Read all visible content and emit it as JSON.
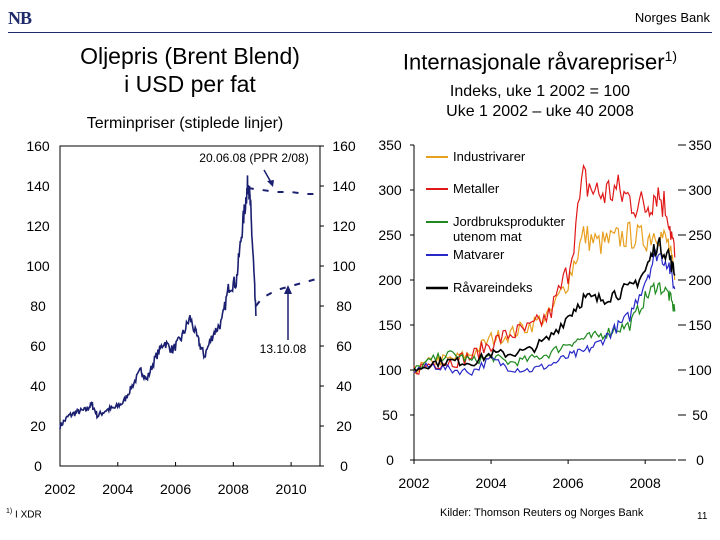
{
  "header": {
    "logo_text": "NB",
    "brand": "Norges Bank"
  },
  "left_chart": {
    "title_line1": "Oljepris (Brent Blend)",
    "title_line2": "i USD per fat",
    "subtitle": "Terminpriser (stiplede linjer)",
    "annotation_top": "20.06.08 (PPR 2/08)",
    "annotation_bottom": "13.10.08"
  },
  "right_chart": {
    "title": "Internasjonale råvarepriser",
    "title_sup": "1)",
    "subtitle_line1": "Indeks, uke 1 2002 = 100",
    "subtitle_line2": "Uke 1 2002 – uke 40 2008"
  },
  "footer": {
    "footnote_sup": "1)",
    "footnote": "I XDR",
    "source": "Kilder: Thomson Reuters og Norges Bank",
    "page_number": "11"
  },
  "colors": {
    "oil": "#1a1f70",
    "industrial": "#e8a020",
    "metals": "#e01818",
    "agri": "#1e8a1e",
    "food": "#2828c8",
    "commodity": "#000000",
    "logo": "#1f2a6b"
  },
  "chart_data": [
    {
      "type": "line",
      "title": "Oljepris (Brent Blend) i USD per fat",
      "subtitle": "Terminpriser (stiplede linjer)",
      "xlabel": "",
      "ylabel": "",
      "xlim": [
        2002,
        2011
      ],
      "ylim": [
        0,
        160
      ],
      "y_ticks": [
        0,
        20,
        40,
        60,
        80,
        100,
        120,
        140,
        160
      ],
      "x_ticks": [
        "2002",
        "2004",
        "2006",
        "2008",
        "2010"
      ],
      "series": [
        {
          "name": "Brent Blend spot",
          "style": "solid",
          "x": [
            2002.0,
            2002.3,
            2002.6,
            2002.9,
            2003.1,
            2003.3,
            2003.6,
            2003.9,
            2004.2,
            2004.5,
            2004.8,
            2005.0,
            2005.3,
            2005.6,
            2005.9,
            2006.2,
            2006.5,
            2006.8,
            2007.0,
            2007.3,
            2007.6,
            2007.85,
            2008.1,
            2008.3,
            2008.45,
            2008.52,
            2008.6,
            2008.7,
            2008.78
          ],
          "values": [
            20,
            25,
            27,
            28,
            31,
            25,
            28,
            29,
            32,
            40,
            48,
            43,
            54,
            62,
            58,
            64,
            74,
            62,
            55,
            66,
            72,
            90,
            92,
            118,
            135,
            143,
            128,
            100,
            75
          ]
        },
        {
          "name": "Termin 20.06.08 (PPR 2/08)",
          "style": "dashed",
          "x": [
            2008.5,
            2009.0,
            2009.5,
            2010.0,
            2010.5,
            2011.0
          ],
          "values": [
            139,
            138,
            137,
            137,
            136,
            136
          ]
        },
        {
          "name": "Termin 13.10.08",
          "style": "dashed",
          "x": [
            2008.78,
            2009.0,
            2009.5,
            2010.0,
            2010.5,
            2011.0
          ],
          "values": [
            80,
            84,
            88,
            90,
            92,
            94
          ]
        }
      ],
      "annotations": [
        {
          "text": "20.06.08 (PPR 2/08)",
          "points_to_year": 2008.5
        },
        {
          "text": "13.10.08",
          "points_to_year": 2008.78
        }
      ]
    },
    {
      "type": "line",
      "title": "Internasjonale råvarepriser 1)",
      "subtitle": "Indeks, uke 1 2002 = 100 / Uke 1 2002 – uke 40 2008",
      "xlabel": "",
      "ylabel": "",
      "xlim": [
        2002,
        2008.8
      ],
      "ylim": [
        0,
        350
      ],
      "y_ticks": [
        0,
        50,
        100,
        150,
        200,
        250,
        300,
        350
      ],
      "x_ticks": [
        "2002",
        "2004",
        "2006",
        "2008"
      ],
      "legend": "top-left",
      "x": [
        2002.0,
        2002.5,
        2003.0,
        2003.5,
        2004.0,
        2004.5,
        2005.0,
        2005.5,
        2006.0,
        2006.4,
        2006.8,
        2007.2,
        2007.6,
        2008.0,
        2008.3,
        2008.6,
        2008.77
      ],
      "series": [
        {
          "name": "Industrivarer",
          "color_key": "industrial",
          "values": [
            100,
            110,
            112,
            118,
            135,
            140,
            150,
            160,
            200,
            250,
            240,
            245,
            250,
            245,
            255,
            240,
            200
          ]
        },
        {
          "name": "Metaller",
          "color_key": "metals",
          "values": [
            100,
            108,
            110,
            115,
            130,
            140,
            145,
            160,
            210,
            310,
            295,
            300,
            290,
            280,
            300,
            275,
            225
          ]
        },
        {
          "name": "Jordbruksprodukter utenom mat",
          "color_key": "agri",
          "values": [
            100,
            112,
            118,
            110,
            115,
            108,
            112,
            118,
            130,
            135,
            138,
            145,
            150,
            180,
            195,
            185,
            165
          ]
        },
        {
          "name": "Matvarer",
          "color_key": "food",
          "values": [
            100,
            105,
            100,
            98,
            112,
            102,
            100,
            105,
            115,
            120,
            130,
            145,
            160,
            200,
            230,
            220,
            190
          ]
        },
        {
          "name": "Råvareindeks",
          "color_key": "commodity",
          "values": [
            100,
            108,
            110,
            108,
            118,
            118,
            122,
            135,
            160,
            180,
            178,
            185,
            190,
            210,
            240,
            230,
            205
          ]
        }
      ]
    }
  ]
}
